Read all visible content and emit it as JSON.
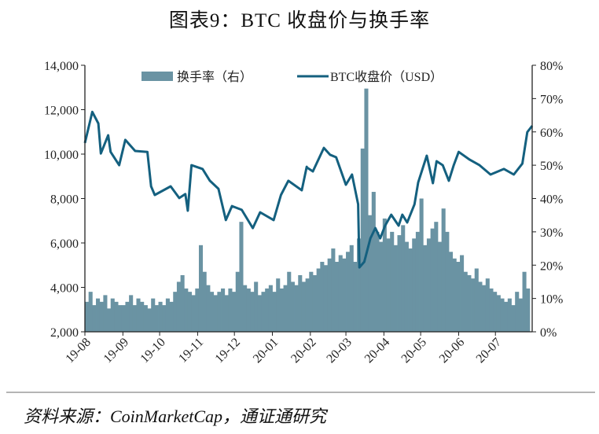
{
  "title": "图表9：BTC 收盘价与换手率",
  "source": "资料来源：CoinMarketCap，通证通研究",
  "colors": {
    "bars": "#6a93a3",
    "line": "#14607f",
    "axis": "#222222",
    "divider": "#b5b5b5"
  },
  "chart_data": {
    "type": "bar+line",
    "title": "图表9：BTC 收盘价与换手率",
    "x_unit": "days since 2019-08-01",
    "x_range": [
      0,
      365
    ],
    "xticks": [
      "19-08",
      "19-09",
      "19-10",
      "19-11",
      "19-12",
      "20-01",
      "20-02",
      "20-03",
      "20-04",
      "20-05",
      "20-06",
      "20-07"
    ],
    "xtick_days": [
      0,
      31,
      61,
      92,
      122,
      153,
      184,
      213,
      244,
      274,
      305,
      335
    ],
    "left_axis": {
      "ylim": [
        2000,
        14000
      ],
      "ticks": [
        "2,000",
        "4,000",
        "6,000",
        "8,000",
        "10,000",
        "12,000",
        "14,000"
      ],
      "tick_values": [
        2000,
        4000,
        6000,
        8000,
        10000,
        12000,
        14000
      ]
    },
    "right_axis": {
      "ylim": [
        0,
        80
      ],
      "ticks": [
        "0%",
        "10%",
        "20%",
        "30%",
        "40%",
        "50%",
        "60%",
        "70%",
        "80%"
      ],
      "tick_values": [
        0,
        10,
        20,
        30,
        40,
        50,
        60,
        70,
        80
      ]
    },
    "legend": {
      "placement": "top-center",
      "items": [
        "换手率（右）",
        "BTC收盘价（USD）"
      ]
    },
    "series": [
      {
        "name": "换手率（右）",
        "type": "bar",
        "axis": "right",
        "step_days": 3,
        "values": [
          9,
          12,
          8,
          10,
          9,
          11,
          7,
          10,
          9,
          8,
          8,
          9,
          11,
          8,
          10,
          9,
          8,
          7,
          10,
          8,
          9,
          8,
          10,
          9,
          12,
          15,
          17,
          13,
          12,
          11,
          13,
          26,
          18,
          14,
          12,
          11,
          12,
          13,
          11,
          13,
          12,
          18,
          33,
          14,
          13,
          12,
          15,
          11,
          12,
          13,
          14,
          12,
          16,
          13,
          14,
          18,
          15,
          14,
          17,
          15,
          16,
          18,
          17,
          19,
          21,
          20,
          22,
          25,
          21,
          23,
          22,
          24,
          26,
          21,
          28,
          55,
          73,
          35,
          42,
          30,
          27,
          34,
          28,
          30,
          26,
          29,
          32,
          27,
          25,
          28,
          30,
          40,
          26,
          28,
          31,
          33,
          27,
          37,
          30,
          24,
          22,
          21,
          23,
          18,
          17,
          16,
          19,
          15,
          14,
          16,
          13,
          12,
          11,
          10,
          9,
          10,
          8,
          12,
          10,
          18,
          13
        ]
      },
      {
        "name": "BTC收盘价（USD）",
        "type": "line",
        "axis": "left",
        "points": [
          [
            0,
            10500
          ],
          [
            6,
            11900
          ],
          [
            11,
            11380
          ],
          [
            13,
            10030
          ],
          [
            19,
            10850
          ],
          [
            21,
            10100
          ],
          [
            28,
            9500
          ],
          [
            33,
            10640
          ],
          [
            41,
            10140
          ],
          [
            51,
            10100
          ],
          [
            54,
            8550
          ],
          [
            57,
            8160
          ],
          [
            70,
            8550
          ],
          [
            77,
            8020
          ],
          [
            82,
            8200
          ],
          [
            84,
            7450
          ],
          [
            87,
            9500
          ],
          [
            96,
            9330
          ],
          [
            102,
            8800
          ],
          [
            109,
            8440
          ],
          [
            115,
            7030
          ],
          [
            120,
            7660
          ],
          [
            128,
            7490
          ],
          [
            137,
            6670
          ],
          [
            143,
            7380
          ],
          [
            154,
            7030
          ],
          [
            160,
            8160
          ],
          [
            166,
            8800
          ],
          [
            177,
            8370
          ],
          [
            181,
            9430
          ],
          [
            181,
            9400
          ],
          [
            186,
            9220
          ],
          [
            195,
            10280
          ],
          [
            200,
            9970
          ],
          [
            205,
            9860
          ],
          [
            213,
            8620
          ],
          [
            218,
            9080
          ],
          [
            223,
            7740
          ],
          [
            224,
            4900
          ],
          [
            228,
            5150
          ],
          [
            233,
            6210
          ],
          [
            237,
            6670
          ],
          [
            241,
            6210
          ],
          [
            245,
            6780
          ],
          [
            250,
            7270
          ],
          [
            256,
            6780
          ],
          [
            259,
            7270
          ],
          [
            263,
            6920
          ],
          [
            269,
            7740
          ],
          [
            272,
            8730
          ],
          [
            279,
            9930
          ],
          [
            284,
            8690
          ],
          [
            287,
            9680
          ],
          [
            292,
            9500
          ],
          [
            297,
            8800
          ],
          [
            301,
            9500
          ],
          [
            305,
            10100
          ],
          [
            314,
            9750
          ],
          [
            322,
            9500
          ],
          [
            331,
            9080
          ],
          [
            342,
            9330
          ],
          [
            350,
            9080
          ],
          [
            357,
            9570
          ],
          [
            361,
            10990
          ],
          [
            365,
            11270
          ]
        ]
      }
    ]
  }
}
